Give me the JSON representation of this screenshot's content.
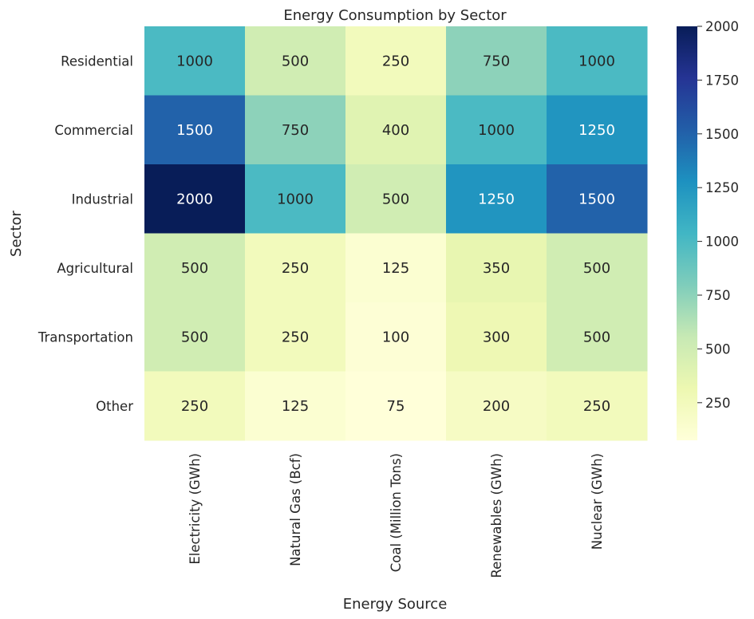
{
  "chart_data": {
    "type": "heatmap",
    "title": "Energy Consumption by Sector",
    "xlabel": "Energy Source",
    "ylabel": "Sector",
    "x_categories": [
      "Electricity (GWh)",
      "Natural Gas (Bcf)",
      "Coal (Million Tons)",
      "Renewables (GWh)",
      "Nuclear (GWh)"
    ],
    "y_categories": [
      "Residential",
      "Commercial",
      "Industrial",
      "Agricultural",
      "Transportation",
      "Other"
    ],
    "values": [
      [
        1000,
        500,
        250,
        750,
        1000
      ],
      [
        1500,
        750,
        400,
        1000,
        1250
      ],
      [
        2000,
        1000,
        500,
        1250,
        1500
      ],
      [
        500,
        250,
        125,
        350,
        500
      ],
      [
        500,
        250,
        100,
        300,
        500
      ],
      [
        250,
        125,
        75,
        200,
        250
      ]
    ],
    "colorbar": {
      "min": 75,
      "max": 2000,
      "ticks": [
        250,
        500,
        750,
        1000,
        1250,
        1500,
        1750,
        2000
      ],
      "colormap": "YlGnBu",
      "colors": [
        "#ffffd9",
        "#edf8b1",
        "#c7e9b4",
        "#7fcdbb",
        "#41b6c4",
        "#1d91c0",
        "#225ea8",
        "#253494",
        "#081d58"
      ]
    },
    "annotations": true,
    "legend": "colorbar-right"
  }
}
